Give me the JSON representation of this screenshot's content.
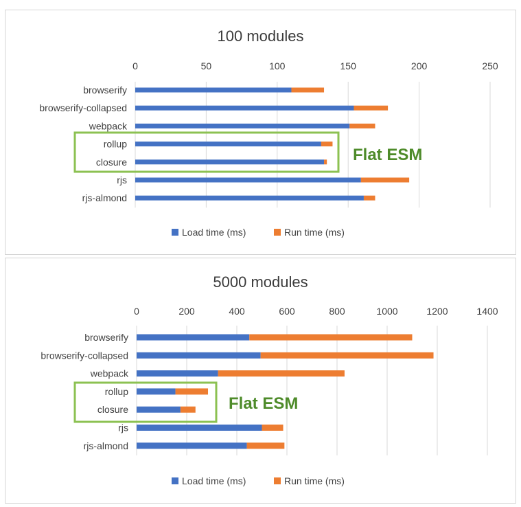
{
  "chart_data": [
    {
      "type": "bar",
      "orientation": "horizontal",
      "stacked": true,
      "title": "100 modules",
      "categories": [
        "browserify",
        "browserify-collapsed",
        "webpack",
        "rollup",
        "closure",
        "rjs",
        "rjs-almond"
      ],
      "series": [
        {
          "name": "Load time (ms)",
          "color": "#4472c4",
          "values": [
            110,
            154,
            151,
            131,
            133,
            159,
            161
          ]
        },
        {
          "name": "Run time (ms)",
          "color": "#ed7d31",
          "values": [
            23,
            24,
            18,
            8,
            2,
            34,
            8
          ]
        }
      ],
      "xlim": [
        0,
        250
      ],
      "xticks": [
        0,
        50,
        100,
        150,
        200,
        250
      ],
      "grid": true,
      "legend_position": "bottom",
      "annotation": {
        "text": "Flat ESM",
        "color": "#8cc152",
        "text_color": "#4e8b2a",
        "highlight": [
          "rollup",
          "closure"
        ]
      }
    },
    {
      "type": "bar",
      "orientation": "horizontal",
      "stacked": true,
      "title": "5000 modules",
      "categories": [
        "browserify",
        "browserify-collapsed",
        "webpack",
        "rollup",
        "closure",
        "rjs",
        "rjs-almond"
      ],
      "series": [
        {
          "name": "Load time (ms)",
          "color": "#4472c4",
          "values": [
            450,
            495,
            325,
            155,
            175,
            500,
            440
          ]
        },
        {
          "name": "Run time (ms)",
          "color": "#ed7d31",
          "values": [
            650,
            690,
            505,
            130,
            60,
            85,
            150
          ]
        }
      ],
      "xlim": [
        0,
        1400
      ],
      "xticks": [
        0,
        200,
        400,
        600,
        800,
        1000,
        1200,
        1400
      ],
      "grid": true,
      "legend_position": "bottom",
      "annotation": {
        "text": "Flat ESM",
        "color": "#8cc152",
        "text_color": "#4e8b2a",
        "highlight": [
          "rollup",
          "closure"
        ]
      }
    }
  ]
}
